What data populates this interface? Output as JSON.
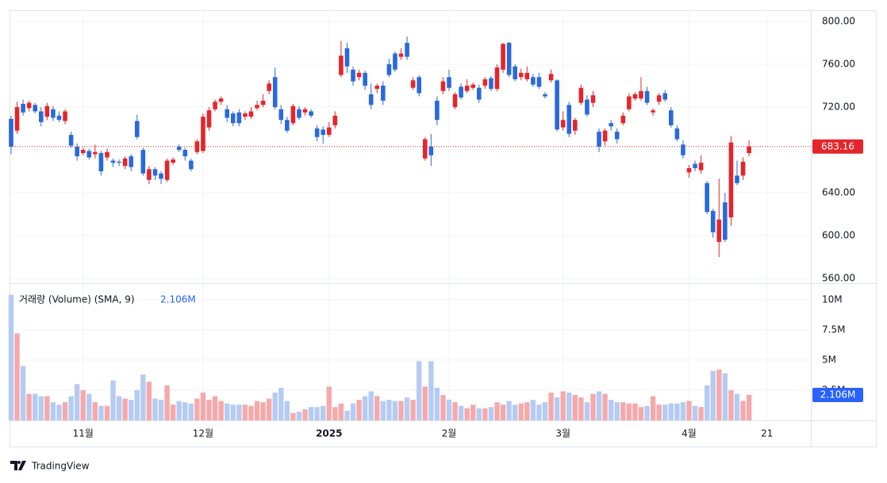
{
  "chart_data": {
    "type": "candlestick",
    "brand": "TradingView",
    "open": [
      709,
      698,
      723,
      719,
      722,
      716,
      711,
      718,
      712,
      707,
      694,
      683,
      677,
      679,
      676,
      677,
      673,
      670,
      669,
      665,
      674,
      707,
      680,
      652,
      662,
      658,
      652,
      668,
      683,
      680,
      670,
      678,
      679,
      701,
      718,
      725,
      718,
      714,
      715,
      711,
      711,
      719,
      722,
      735,
      748,
      718,
      708,
      705,
      718,
      715,
      716,
      700,
      699,
      694,
      703,
      750,
      775,
      755,
      748,
      752,
      732,
      737,
      740,
      760,
      770,
      767,
      780,
      738,
      748,
      672,
      683,
      726,
      735,
      748,
      720,
      739,
      735,
      738,
      738,
      740,
      747,
      737,
      755,
      780,
      758,
      748,
      746,
      748,
      748,
      732,
      745,
      745,
      701,
      722,
      698,
      724,
      727,
      724,
      697,
      688,
      705,
      697,
      705,
      718,
      728,
      728,
      735,
      715,
      725,
      733,
      717,
      700,
      685,
      659,
      667,
      661,
      649,
      623,
      594,
      631,
      617,
      656,
      656,
      677
    ],
    "high": [
      712,
      725,
      727,
      726,
      724,
      720,
      724,
      721,
      716,
      718,
      697,
      686,
      682,
      681,
      685,
      679,
      681,
      672,
      671,
      674,
      676,
      713,
      682,
      665,
      664,
      660,
      672,
      673,
      685,
      682,
      672,
      690,
      714,
      720,
      727,
      730,
      722,
      716,
      718,
      716,
      720,
      726,
      732,
      745,
      757,
      722,
      711,
      723,
      721,
      720,
      718,
      703,
      702,
      706,
      716,
      782,
      780,
      758,
      755,
      754,
      742,
      742,
      744,
      765,
      772,
      775,
      786,
      748,
      750,
      692,
      695,
      730,
      748,
      755,
      734,
      742,
      746,
      743,
      741,
      748,
      749,
      760,
      780,
      781,
      760,
      756,
      758,
      751,
      752,
      734,
      755,
      746,
      716,
      725,
      710,
      741,
      731,
      735,
      700,
      700,
      708,
      700,
      715,
      733,
      734,
      748,
      739,
      719,
      733,
      736,
      720,
      703,
      689,
      666,
      670,
      675,
      651,
      625,
      653,
      640,
      693,
      670,
      673,
      689
    ],
    "low": [
      676,
      695,
      712,
      716,
      714,
      702,
      708,
      707,
      706,
      704,
      682,
      670,
      675,
      671,
      672,
      656,
      670,
      664,
      665,
      662,
      660,
      690,
      656,
      648,
      652,
      648,
      650,
      666,
      678,
      670,
      660,
      676,
      677,
      698,
      716,
      722,
      706,
      702,
      702,
      708,
      709,
      717,
      720,
      732,
      718,
      704,
      696,
      703,
      708,
      712,
      710,
      688,
      686,
      692,
      700,
      748,
      752,
      740,
      745,
      736,
      718,
      733,
      722,
      748,
      753,
      764,
      764,
      736,
      730,
      670,
      665,
      703,
      732,
      735,
      718,
      727,
      733,
      736,
      724,
      737,
      735,
      735,
      752,
      748,
      744,
      745,
      744,
      739,
      737,
      728,
      743,
      697,
      698,
      692,
      694,
      722,
      711,
      720,
      678,
      684,
      698,
      686,
      703,
      716,
      726,
      726,
      722,
      712,
      722,
      725,
      701,
      688,
      672,
      654,
      660,
      658,
      620,
      598,
      580,
      594,
      609,
      647,
      652,
      674
    ],
    "close": [
      683,
      720,
      715,
      724,
      716,
      706,
      721,
      710,
      708,
      716,
      684,
      674,
      680,
      673,
      678,
      660,
      678,
      668,
      668,
      672,
      664,
      692,
      658,
      662,
      656,
      653,
      670,
      671,
      680,
      674,
      662,
      688,
      711,
      717,
      725,
      728,
      710,
      705,
      705,
      714,
      716,
      722,
      726,
      742,
      720,
      708,
      698,
      721,
      710,
      718,
      712,
      692,
      694,
      701,
      712,
      768,
      758,
      744,
      752,
      740,
      722,
      740,
      726,
      750,
      755,
      770,
      767,
      745,
      733,
      690,
      675,
      708,
      744,
      738,
      732,
      729,
      740,
      741,
      727,
      746,
      737,
      757,
      779,
      750,
      746,
      752,
      752,
      741,
      739,
      730,
      751,
      699,
      708,
      695,
      708,
      738,
      713,
      731,
      683,
      698,
      702,
      690,
      712,
      730,
      732,
      735,
      724,
      717,
      731,
      727,
      703,
      690,
      675,
      663,
      663,
      668,
      622,
      603,
      615,
      596,
      687,
      649,
      669,
      683.16
    ],
    "up_color": "#e3262b",
    "down_color": "#2a6ad8",
    "xlim": [
      -0.13,
      133.3
    ],
    "xticks": [
      {
        "value": 12,
        "label": "11월"
      },
      {
        "value": 32,
        "label": "12월"
      },
      {
        "value": 53,
        "label": "2025"
      },
      {
        "value": 73,
        "label": "2월"
      },
      {
        "value": 92,
        "label": "3월"
      },
      {
        "value": 113,
        "label": "4월"
      },
      {
        "value": 126,
        "label": "21"
      }
    ],
    "ylim": [
      556.3,
      810.4
    ],
    "yticks": [
      {
        "value": 560,
        "label": "560.00"
      },
      {
        "value": 600,
        "label": "600.00"
      },
      {
        "value": 640,
        "label": "640.00"
      },
      {
        "value": 680,
        "label": "680.00"
      },
      {
        "value": 720,
        "label": "720.00"
      },
      {
        "value": 760,
        "label": "760.00"
      },
      {
        "value": 800,
        "label": "800.00"
      }
    ],
    "grid": true,
    "volume": {
      "title": "거래량 (Volume) (SMA, 9)",
      "values": [
        10.4,
        7.2,
        4.5,
        2.2,
        2.2,
        2.0,
        2.0,
        1.5,
        1.3,
        1.5,
        2.0,
        3.0,
        2.5,
        2.2,
        1.5,
        1.2,
        1.2,
        3.3,
        2.0,
        1.8,
        1.7,
        2.5,
        3.8,
        3.2,
        1.8,
        1.7,
        2.9,
        1.3,
        1.6,
        1.5,
        1.4,
        1.8,
        2.3,
        1.7,
        2.0,
        1.6,
        1.4,
        1.3,
        1.3,
        1.3,
        1.2,
        1.6,
        1.5,
        1.8,
        2.3,
        2.7,
        1.6,
        0.6,
        0.7,
        0.9,
        1.1,
        1.1,
        1.2,
        2.8,
        1.1,
        1.4,
        0.8,
        1.4,
        1.7,
        2.0,
        2.4,
        2.0,
        1.6,
        1.7,
        1.6,
        1.6,
        1.9,
        1.7,
        4.9,
        2.8,
        4.9,
        2.7,
        2.1,
        1.7,
        1.5,
        1.2,
        1.0,
        1.3,
        1.0,
        1.0,
        1.1,
        1.5,
        1.3,
        1.6,
        1.3,
        1.4,
        1.5,
        1.7,
        1.3,
        1.5,
        2.3,
        1.9,
        2.4,
        2.3,
        2.1,
        1.9,
        1.5,
        2.2,
        2.4,
        2.2,
        1.7,
        1.5,
        1.5,
        1.4,
        1.4,
        1.1,
        1.2,
        2.0,
        1.3,
        1.3,
        1.4,
        1.4,
        1.5,
        1.6,
        1.2,
        1.1,
        2.9,
        4.1,
        4.2,
        3.9,
        2.5,
        2.2,
        1.6,
        2.106
      ],
      "last_value_label": "2.106M",
      "up_color": "#f5a9aa",
      "down_color": "#b5cbf3",
      "ylim": [
        0,
        11.3
      ],
      "yticks": [
        {
          "value": 2.5,
          "label": "2.5M"
        },
        {
          "value": 5,
          "label": "5M"
        },
        {
          "value": 7.5,
          "label": "7.5M"
        },
        {
          "value": 10,
          "label": "10M"
        }
      ]
    }
  }
}
